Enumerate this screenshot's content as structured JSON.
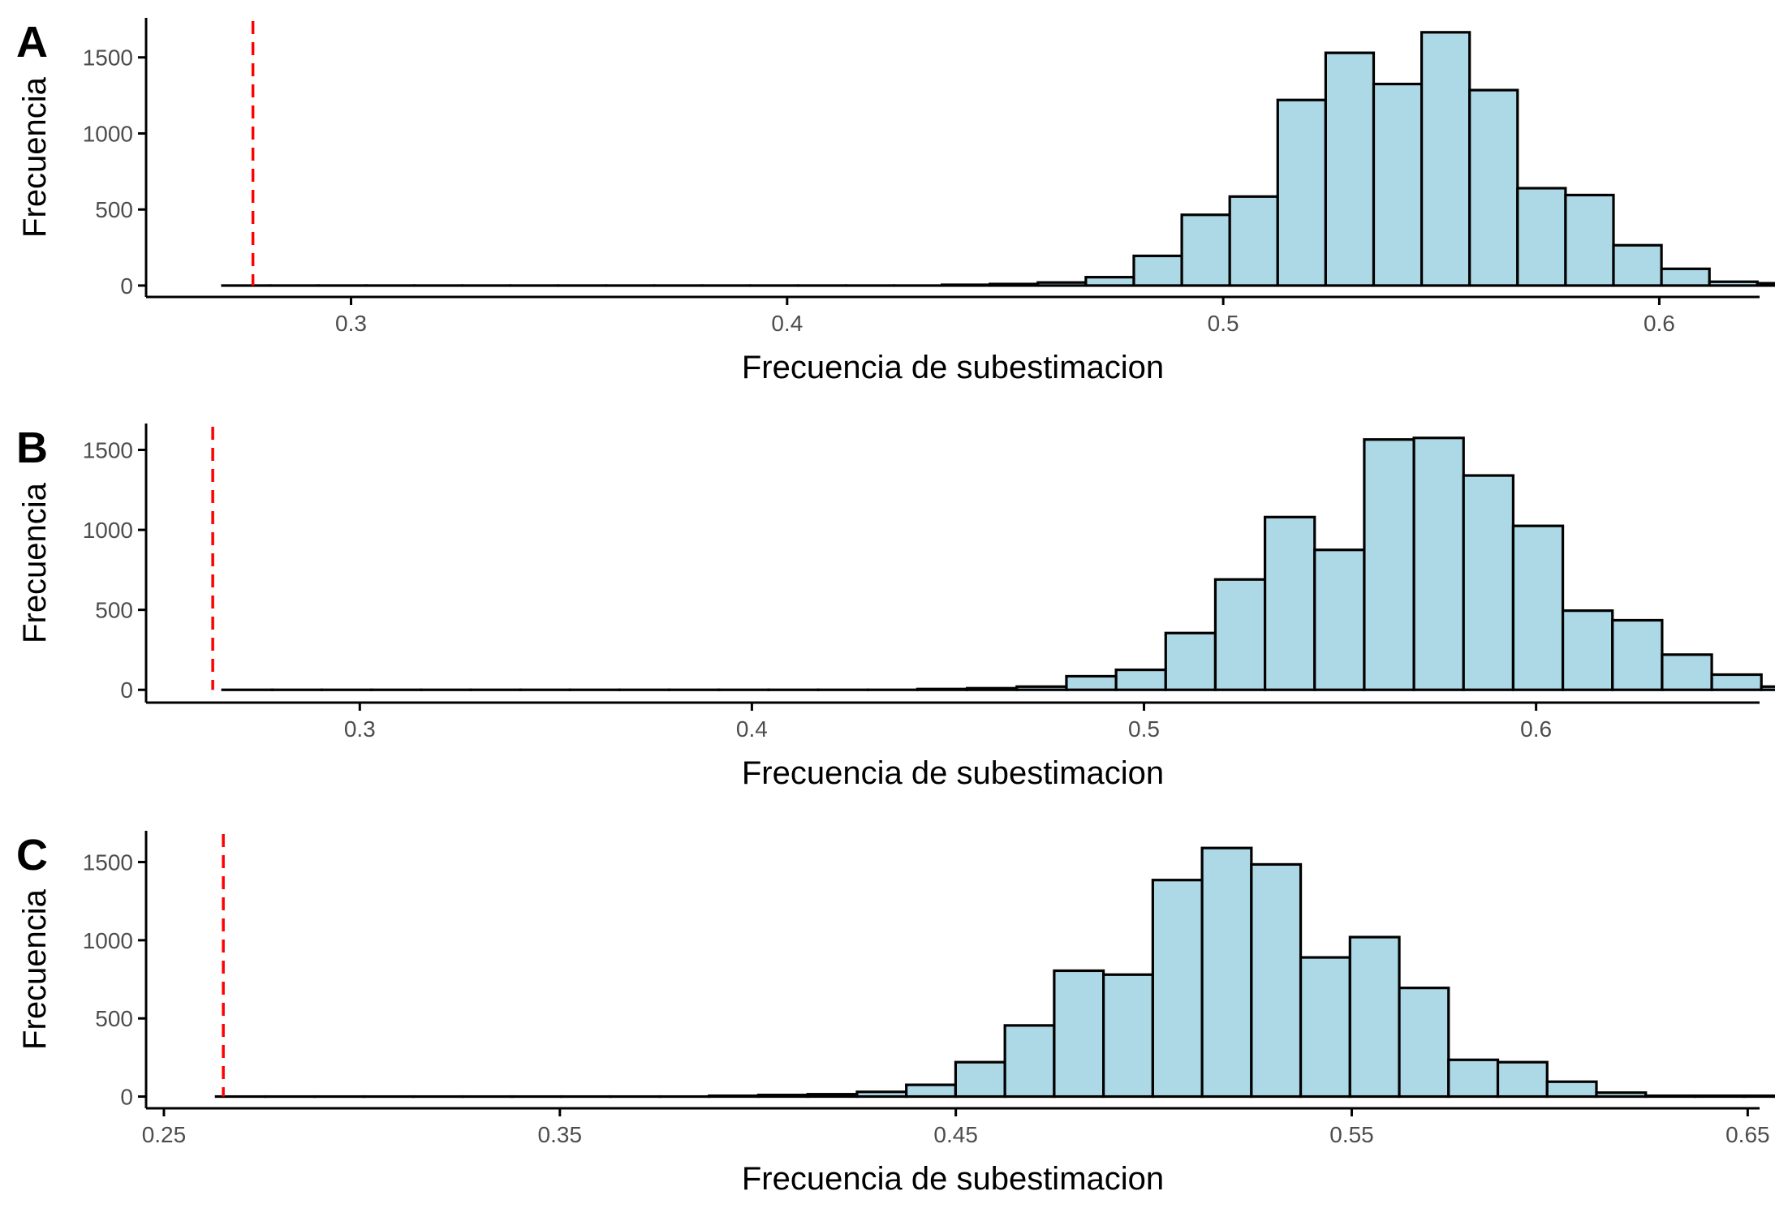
{
  "colors": {
    "bar_fill": "#add8e6",
    "bar_stroke": "#000000",
    "ref_line": "#ff0000",
    "axis": "#000000",
    "tick_text": "#4d4d4d"
  },
  "chart_data": [
    {
      "type": "bar",
      "panel": "A",
      "xlabel": "Frecuencia de subestimacion",
      "ylabel": "Frecuencia",
      "xlim": [
        0.253,
        0.623
      ],
      "ylim": [
        -75,
        1760
      ],
      "x_ticks": [
        0.3,
        0.4,
        0.5,
        0.6
      ],
      "x_tick_labels": [
        "0.3",
        "0.4",
        "0.5",
        "0.6"
      ],
      "y_ticks": [
        0,
        500,
        1000,
        1500
      ],
      "y_tick_labels": [
        "0",
        "500",
        "1000",
        "1500"
      ],
      "bin_start": 0.2705,
      "bin_width": 0.011,
      "counts": [
        0,
        0,
        0,
        0,
        0,
        0,
        0,
        0,
        0,
        0,
        0,
        0,
        0,
        0,
        0,
        5,
        10,
        20,
        55,
        195,
        465,
        585,
        1220,
        1530,
        1325,
        1665,
        1285,
        640,
        595,
        265,
        110,
        25,
        15,
        5
      ],
      "reference_line": 0.2775,
      "grid": false
    },
    {
      "type": "bar",
      "panel": "B",
      "xlabel": "Frecuencia de subestimacion",
      "ylabel": "Frecuencia",
      "xlim": [
        0.2455,
        0.657
      ],
      "ylim": [
        -80,
        1665
      ],
      "x_ticks": [
        0.3,
        0.4,
        0.5,
        0.6
      ],
      "x_tick_labels": [
        "0.3",
        "0.4",
        "0.5",
        "0.6"
      ],
      "y_ticks": [
        0,
        500,
        1000,
        1500
      ],
      "y_tick_labels": [
        "0",
        "500",
        "1000",
        "1500"
      ],
      "bin_start": 0.265,
      "bin_width": 0.01266,
      "counts": [
        0,
        0,
        0,
        0,
        0,
        0,
        0,
        0,
        0,
        0,
        0,
        0,
        0,
        0,
        5,
        10,
        20,
        85,
        125,
        355,
        690,
        1080,
        875,
        1565,
        1575,
        1340,
        1025,
        495,
        435,
        220,
        95,
        20,
        10,
        5
      ],
      "reference_line": 0.2625,
      "grid": false
    },
    {
      "type": "bar",
      "panel": "C",
      "xlabel": "Frecuencia de subestimacion",
      "ylabel": "Frecuencia",
      "xlim": [
        0.2455,
        0.653
      ],
      "ylim": [
        -75,
        1700
      ],
      "x_ticks": [
        0.25,
        0.35,
        0.45,
        0.55,
        0.65
      ],
      "x_tick_labels": [
        "0.25",
        "0.35",
        "0.45",
        "0.55",
        "0.65"
      ],
      "y_ticks": [
        0,
        500,
        1000,
        1500
      ],
      "y_tick_labels": [
        "0",
        "500",
        "1000",
        "1500"
      ],
      "bin_start": 0.2632,
      "bin_width": 0.01245,
      "counts": [
        0,
        0,
        0,
        0,
        0,
        0,
        0,
        0,
        0,
        0,
        5,
        10,
        15,
        30,
        75,
        220,
        455,
        805,
        780,
        1385,
        1590,
        1485,
        890,
        1020,
        695,
        235,
        220,
        95,
        25,
        5,
        5,
        5
      ],
      "reference_line": 0.265,
      "grid": false
    }
  ]
}
